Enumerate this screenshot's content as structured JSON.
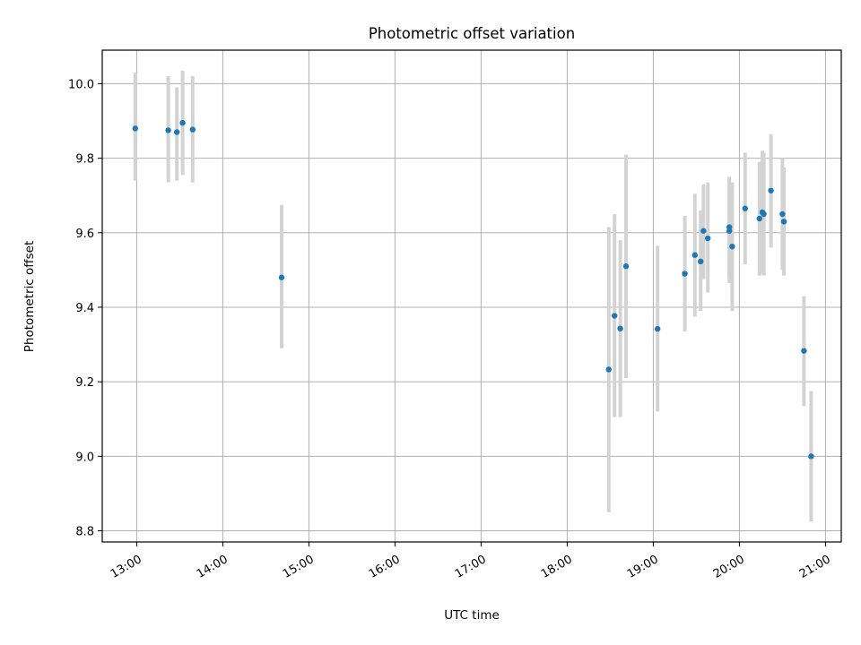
{
  "chart_data": {
    "type": "scatter",
    "title": "Photometric offset variation",
    "xlabel": "UTC time",
    "ylabel": "Photometric offset",
    "xlim": [
      "12:36",
      "21:11"
    ],
    "ylim": [
      8.77,
      10.09
    ],
    "grid": true,
    "x_ticks": [
      "13:00",
      "14:00",
      "15:00",
      "16:00",
      "17:00",
      "18:00",
      "19:00",
      "20:00",
      "21:00"
    ],
    "y_ticks": [
      "8.8",
      "9.0",
      "9.2",
      "9.4",
      "9.6",
      "9.8",
      "10.0"
    ],
    "marker_color": "#1f77b4",
    "errorbar_color": "#d3d3d3",
    "points": [
      {
        "time": "12:59",
        "value": 9.88,
        "err_low": 9.74,
        "err_high": 10.03
      },
      {
        "time": "13:22",
        "value": 9.875,
        "err_low": 9.735,
        "err_high": 10.02
      },
      {
        "time": "13:28",
        "value": 9.87,
        "err_low": 9.74,
        "err_high": 9.99
      },
      {
        "time": "13:32",
        "value": 9.895,
        "err_low": 9.755,
        "err_high": 10.035
      },
      {
        "time": "13:39",
        "value": 9.877,
        "err_low": 9.735,
        "err_high": 10.02
      },
      {
        "time": "14:41",
        "value": 9.48,
        "err_low": 9.29,
        "err_high": 9.675
      },
      {
        "time": "18:29",
        "value": 9.233,
        "err_low": 8.85,
        "err_high": 9.615
      },
      {
        "time": "18:33",
        "value": 9.377,
        "err_low": 9.105,
        "err_high": 9.65
      },
      {
        "time": "18:37",
        "value": 9.343,
        "err_low": 9.105,
        "err_high": 9.58
      },
      {
        "time": "18:41",
        "value": 9.51,
        "err_low": 9.21,
        "err_high": 9.81
      },
      {
        "time": "19:03",
        "value": 9.342,
        "err_low": 9.12,
        "err_high": 9.565
      },
      {
        "time": "19:22",
        "value": 9.49,
        "err_low": 9.335,
        "err_high": 9.645
      },
      {
        "time": "19:29",
        "value": 9.54,
        "err_low": 9.375,
        "err_high": 9.705
      },
      {
        "time": "19:33",
        "value": 9.523,
        "err_low": 9.39,
        "err_high": 9.66
      },
      {
        "time": "19:35",
        "value": 9.605,
        "err_low": 9.475,
        "err_high": 9.73
      },
      {
        "time": "19:38",
        "value": 9.585,
        "err_low": 9.44,
        "err_high": 9.735
      },
      {
        "time": "19:53",
        "value": 9.605,
        "err_low": 9.465,
        "err_high": 9.75
      },
      {
        "time": "19:53",
        "value": 9.615,
        "err_low": 9.485,
        "err_high": 9.745
      },
      {
        "time": "19:55",
        "value": 9.563,
        "err_low": 9.39,
        "err_high": 9.735
      },
      {
        "time": "20:04",
        "value": 9.665,
        "err_low": 9.515,
        "err_high": 9.815
      },
      {
        "time": "20:14",
        "value": 9.638,
        "err_low": 9.485,
        "err_high": 9.79
      },
      {
        "time": "20:16",
        "value": 9.655,
        "err_low": 9.49,
        "err_high": 9.82
      },
      {
        "time": "20:17",
        "value": 9.65,
        "err_low": 9.485,
        "err_high": 9.815
      },
      {
        "time": "20:22",
        "value": 9.713,
        "err_low": 9.56,
        "err_high": 9.865
      },
      {
        "time": "20:30",
        "value": 9.65,
        "err_low": 9.5,
        "err_high": 9.8
      },
      {
        "time": "20:31",
        "value": 9.63,
        "err_low": 9.485,
        "err_high": 9.775
      },
      {
        "time": "20:45",
        "value": 9.283,
        "err_low": 9.135,
        "err_high": 9.43
      },
      {
        "time": "20:50",
        "value": 9.0,
        "err_low": 8.825,
        "err_high": 9.175
      }
    ]
  }
}
